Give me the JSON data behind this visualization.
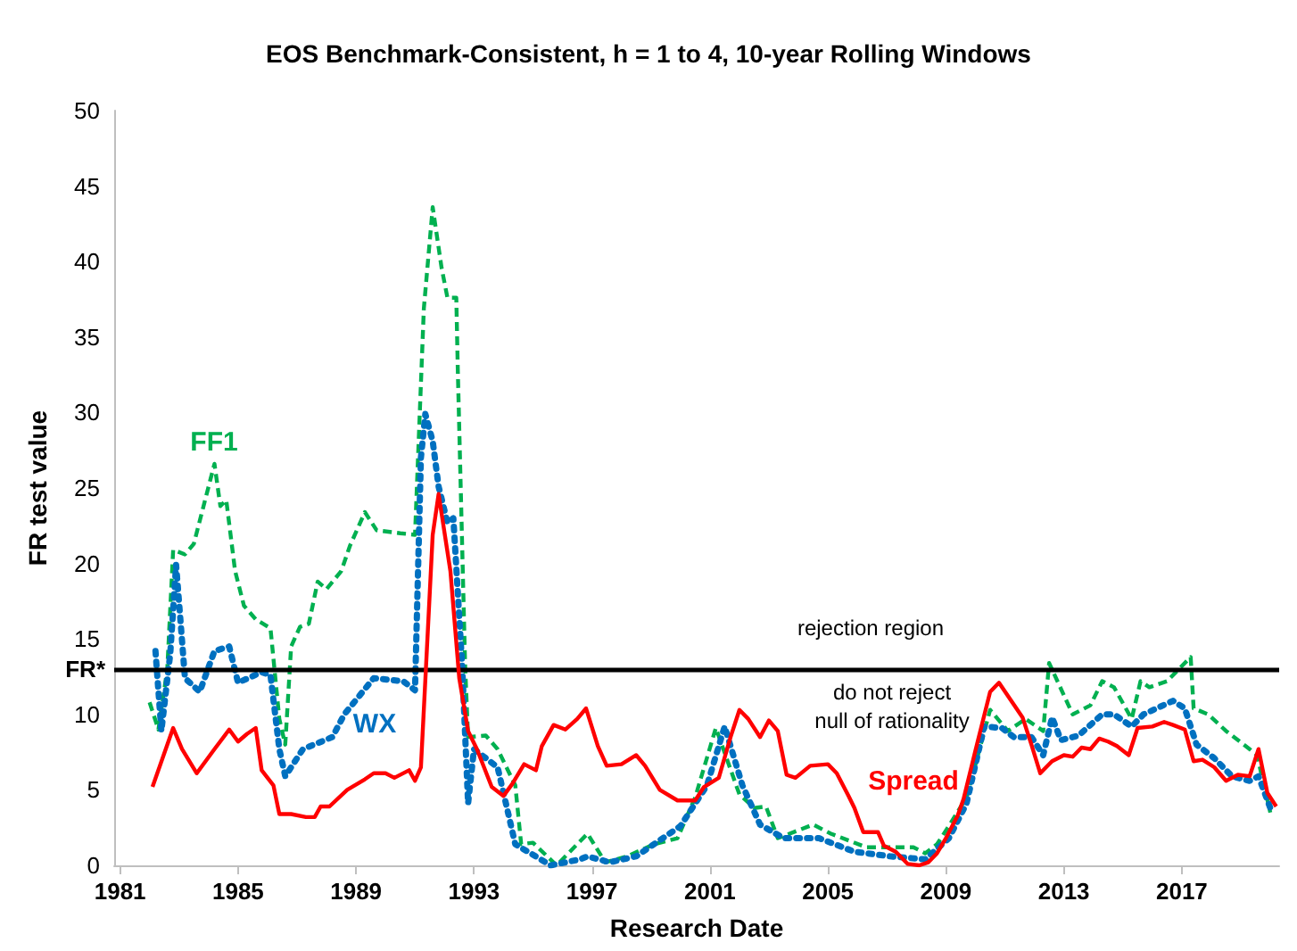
{
  "chart_data": {
    "type": "line",
    "title": "EOS Benchmark-Consistent, h = 1 to 4, 10-year Rolling Windows",
    "xlabel": "Research Date",
    "ylabel": "FR test value",
    "xlim": [
      1980.8,
      2020.3
    ],
    "xticks": [
      1981,
      1985,
      1989,
      1993,
      1997,
      2001,
      2005,
      2009,
      2013,
      2017
    ],
    "ylim": [
      0,
      50
    ],
    "yticks": [
      0,
      5,
      10,
      15,
      20,
      25,
      30,
      35,
      40,
      45,
      50
    ],
    "grid": false,
    "legend": false,
    "marker": "none",
    "ref_lines": [
      {
        "axis": "y",
        "value": 13,
        "label": "FR*",
        "color": "#000000",
        "line_style": "solid"
      }
    ],
    "annotations": [
      "rejection region",
      "do not reject\nnull of rationality"
    ],
    "series": [
      {
        "name": "FF1",
        "color": "#00b050",
        "line_style": "dashed",
        "x": [
          1982.0,
          1982.3,
          1982.6,
          1982.8,
          1983.2,
          1983.5,
          1984.2,
          1984.4,
          1984.6,
          1984.9,
          1985.2,
          1985.6,
          1986.1,
          1986.4,
          1986.6,
          1986.8,
          1987.1,
          1987.4,
          1987.7,
          1988.0,
          1988.5,
          1988.8,
          1989.3,
          1989.7,
          1990.5,
          1991.0,
          1991.3,
          1991.6,
          1991.9,
          1992.1,
          1992.4,
          1992.45,
          1992.7,
          1992.8,
          1993.4,
          1993.8,
          1994.4,
          1994.6,
          1995.0,
          1995.8,
          1996.85,
          1997.45,
          1998.2,
          1999.1,
          1999.9,
          2000.5,
          2001.2,
          2002.0,
          2002.5,
          2002.9,
          2003.3,
          2004.5,
          2005.1,
          2006.3,
          2007.9,
          2008.3,
          2008.7,
          2009.1,
          2009.7,
          2010.5,
          2011.1,
          2011.7,
          2012.3,
          2012.5,
          2013.3,
          2013.9,
          2014.3,
          2014.7,
          2015.3,
          2015.6,
          2015.9,
          2016.5,
          2017.3,
          2017.4,
          2017.9,
          2018.5,
          2019.3,
          2019.55,
          2020.0
        ],
        "values": [
          10.8,
          9.0,
          13,
          20.9,
          20.6,
          21.3,
          26.6,
          23.8,
          24.2,
          19.5,
          17.2,
          16.3,
          15.7,
          9.7,
          8.0,
          14.5,
          15.8,
          16.0,
          18.8,
          18.3,
          19.5,
          21.2,
          23.4,
          22.2,
          22.0,
          21.9,
          36.9,
          43.6,
          39.6,
          37.6,
          37.6,
          32.9,
          13.2,
          8.5,
          8.6,
          7.7,
          5.3,
          1.4,
          1.5,
          0,
          2.1,
          0.2,
          0.6,
          1.4,
          1.8,
          4.5,
          9.1,
          4.7,
          3.8,
          3.9,
          1.8,
          2.7,
          2.1,
          1.2,
          1.2,
          0.8,
          1.4,
          2.6,
          4.5,
          10.3,
          8.9,
          9.7,
          8.9,
          13.4,
          10.0,
          10.6,
          12.2,
          11.8,
          9.7,
          12.2,
          11.8,
          12.2,
          13.8,
          10.4,
          10.0,
          8.9,
          7.7,
          7.3,
          3.5
        ]
      },
      {
        "name": "WX",
        "color": "#0070c0",
        "line_style": "dotted",
        "x": [
          1982.2,
          1982.4,
          1982.7,
          1982.9,
          1983.2,
          1983.7,
          1984.2,
          1984.7,
          1985.0,
          1985.8,
          1986.1,
          1986.4,
          1986.6,
          1987.2,
          1988.2,
          1988.6,
          1989.6,
          1990.6,
          1991.0,
          1991.2,
          1991.35,
          1991.6,
          1991.8,
          1992.1,
          1992.3,
          1992.6,
          1992.8,
          1993.0,
          1993.8,
          1994.4,
          1995.6,
          1996.6,
          1996.85,
          1997.6,
          1998.5,
          1999.4,
          2000.0,
          2000.9,
          2001.5,
          2002.1,
          2002.7,
          2003.5,
          2004.7,
          2005.9,
          2007.1,
          2008.3,
          2009.1,
          2009.7,
          2010.3,
          2010.9,
          2011.3,
          2011.9,
          2012.3,
          2012.6,
          2012.9,
          2013.5,
          2014.3,
          2014.7,
          2015.3,
          2015.7,
          2016.7,
          2017.1,
          2017.5,
          2018.1,
          2018.7,
          2019.3,
          2019.6,
          2020.0
        ],
        "values": [
          14.2,
          8.9,
          14.0,
          19.9,
          12.4,
          11.5,
          14.2,
          14.5,
          12.1,
          12.8,
          12.6,
          7.7,
          5.9,
          7.7,
          8.5,
          10.0,
          12.4,
          12.2,
          11.6,
          27.0,
          29.9,
          28.1,
          25.1,
          22.7,
          23.0,
          13.2,
          4.1,
          7.7,
          6.5,
          1.4,
          0,
          0.4,
          0.6,
          0.2,
          0.6,
          1.8,
          2.6,
          5.3,
          9.2,
          5.3,
          2.7,
          1.8,
          1.8,
          0.9,
          0.6,
          0.4,
          1.8,
          4.1,
          9.2,
          9.1,
          8.5,
          8.5,
          7.3,
          9.8,
          8.3,
          8.6,
          10.0,
          10.0,
          9.2,
          10.0,
          10.9,
          10.4,
          8.0,
          7.1,
          5.9,
          5.6,
          5.9,
          3.8
        ]
      },
      {
        "name": "Spread",
        "color": "#ff0000",
        "line_style": "solid",
        "x": [
          1982.1,
          1982.8,
          1983.1,
          1983.6,
          1984.2,
          1984.7,
          1985.0,
          1985.3,
          1985.6,
          1985.8,
          1986.2,
          1986.4,
          1986.8,
          1987.3,
          1987.6,
          1987.8,
          1988.1,
          1988.7,
          1989.3,
          1989.6,
          1990.0,
          1990.3,
          1990.8,
          1991.0,
          1991.2,
          1991.6,
          1991.8,
          1992.2,
          1992.5,
          1992.8,
          1993.1,
          1993.6,
          1994.0,
          1994.3,
          1994.7,
          1995.1,
          1995.3,
          1995.7,
          1996.1,
          1996.5,
          1996.8,
          1997.2,
          1997.5,
          1998.0,
          1998.5,
          1998.8,
          1999.3,
          1999.9,
          2000.5,
          2000.8,
          2001.3,
          2001.7,
          2002.0,
          2002.3,
          2002.7,
          2003.0,
          2003.3,
          2003.6,
          2003.9,
          2004.4,
          2005.0,
          2005.3,
          2005.7,
          2005.9,
          2006.2,
          2006.7,
          2006.9,
          2007.3,
          2007.7,
          2008.1,
          2008.4,
          2008.7,
          2009.0,
          2009.4,
          2009.6,
          2010.0,
          2010.5,
          2010.8,
          2011.6,
          2011.9,
          2012.2,
          2012.6,
          2013.0,
          2013.3,
          2013.6,
          2013.9,
          2014.2,
          2014.5,
          2014.8,
          2015.2,
          2015.5,
          2016.0,
          2016.4,
          2016.7,
          2017.1,
          2017.4,
          2017.7,
          2018.1,
          2018.5,
          2018.9,
          2019.3,
          2019.6,
          2019.9,
          2020.2
        ],
        "values": [
          5.2,
          9.1,
          7.7,
          6.1,
          7.7,
          9.0,
          8.2,
          8.7,
          9.1,
          6.3,
          5.3,
          3.4,
          3.4,
          3.2,
          3.2,
          3.9,
          3.9,
          5.0,
          5.7,
          6.1,
          6.1,
          5.8,
          6.3,
          5.6,
          6.5,
          21.9,
          24.6,
          19.5,
          12.4,
          8.9,
          7.7,
          5.2,
          4.6,
          5.4,
          6.7,
          6.3,
          7.9,
          9.3,
          9.0,
          9.7,
          10.4,
          7.9,
          6.6,
          6.7,
          7.3,
          6.6,
          5.0,
          4.3,
          4.3,
          5.2,
          5.8,
          8.5,
          10.3,
          9.7,
          8.5,
          9.6,
          8.9,
          6.0,
          5.8,
          6.6,
          6.7,
          6.1,
          4.6,
          3.8,
          2.2,
          2.2,
          1.3,
          0.9,
          0.1,
          0,
          0.2,
          0.8,
          1.8,
          3.3,
          4.4,
          7.6,
          11.5,
          12.1,
          9.8,
          8.0,
          6.1,
          6.9,
          7.3,
          7.2,
          7.8,
          7.7,
          8.4,
          8.2,
          7.9,
          7.3,
          9.1,
          9.2,
          9.5,
          9.3,
          9.0,
          6.9,
          7.0,
          6.5,
          5.6,
          6.0,
          5.9,
          7.7,
          4.8,
          3.9
        ]
      }
    ]
  }
}
